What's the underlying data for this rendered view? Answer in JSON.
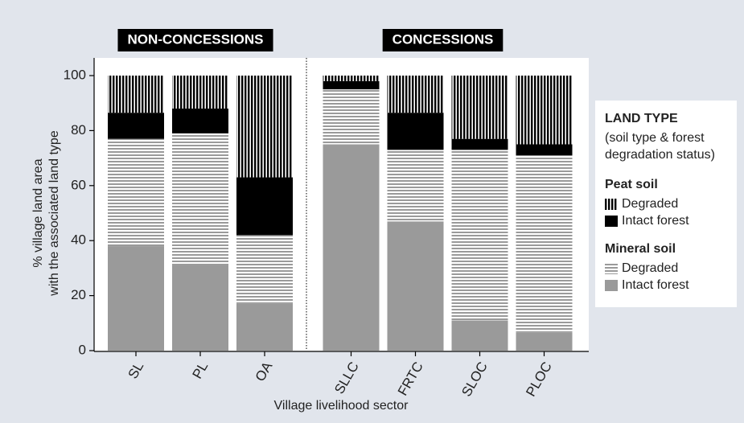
{
  "chart_data": {
    "type": "stacked_bar",
    "x_label": "Village livelihood sector",
    "y_label": [
      "% village land area",
      "with the associated land type"
    ],
    "sections": [
      {
        "label": "NON-CONCESSIONS",
        "categories": [
          "SL",
          "PL",
          "OA"
        ]
      },
      {
        "label": "CONCESSIONS",
        "categories": [
          "SLLC",
          "FRTC",
          "SLOC",
          "PLOC"
        ]
      }
    ],
    "legend_title": "LAND TYPE",
    "legend_subtitle": [
      "(soil type & forest",
      "degradation status)"
    ],
    "series_groups": [
      {
        "name": "Peat soil",
        "series": [
          {
            "name": "Degraded",
            "color": "#000000",
            "hatch": "vertical",
            "values": [
              13.5,
              12,
              37,
              2,
              13.5,
              23,
              25
            ]
          },
          {
            "name": "Intact forest",
            "color": "#000000",
            "values": [
              9.5,
              9,
              21,
              3,
              13.5,
              4,
              4
            ]
          }
        ]
      },
      {
        "name": "Mineral soil",
        "series": [
          {
            "name": "Degraded",
            "color": "#9a9a9a",
            "hatch": "horizontal",
            "values": [
              39,
              48,
              25,
              20,
              26,
              62,
              64.5
            ]
          },
          {
            "name": "Intact forest",
            "color": "#9a9a9a",
            "values": [
              38,
              31,
              17,
              75,
              47,
              11,
              6.5
            ]
          }
        ]
      }
    ],
    "ylim": [
      0,
      100
    ],
    "yticks": [
      0,
      20,
      40,
      60,
      80,
      100
    ]
  }
}
